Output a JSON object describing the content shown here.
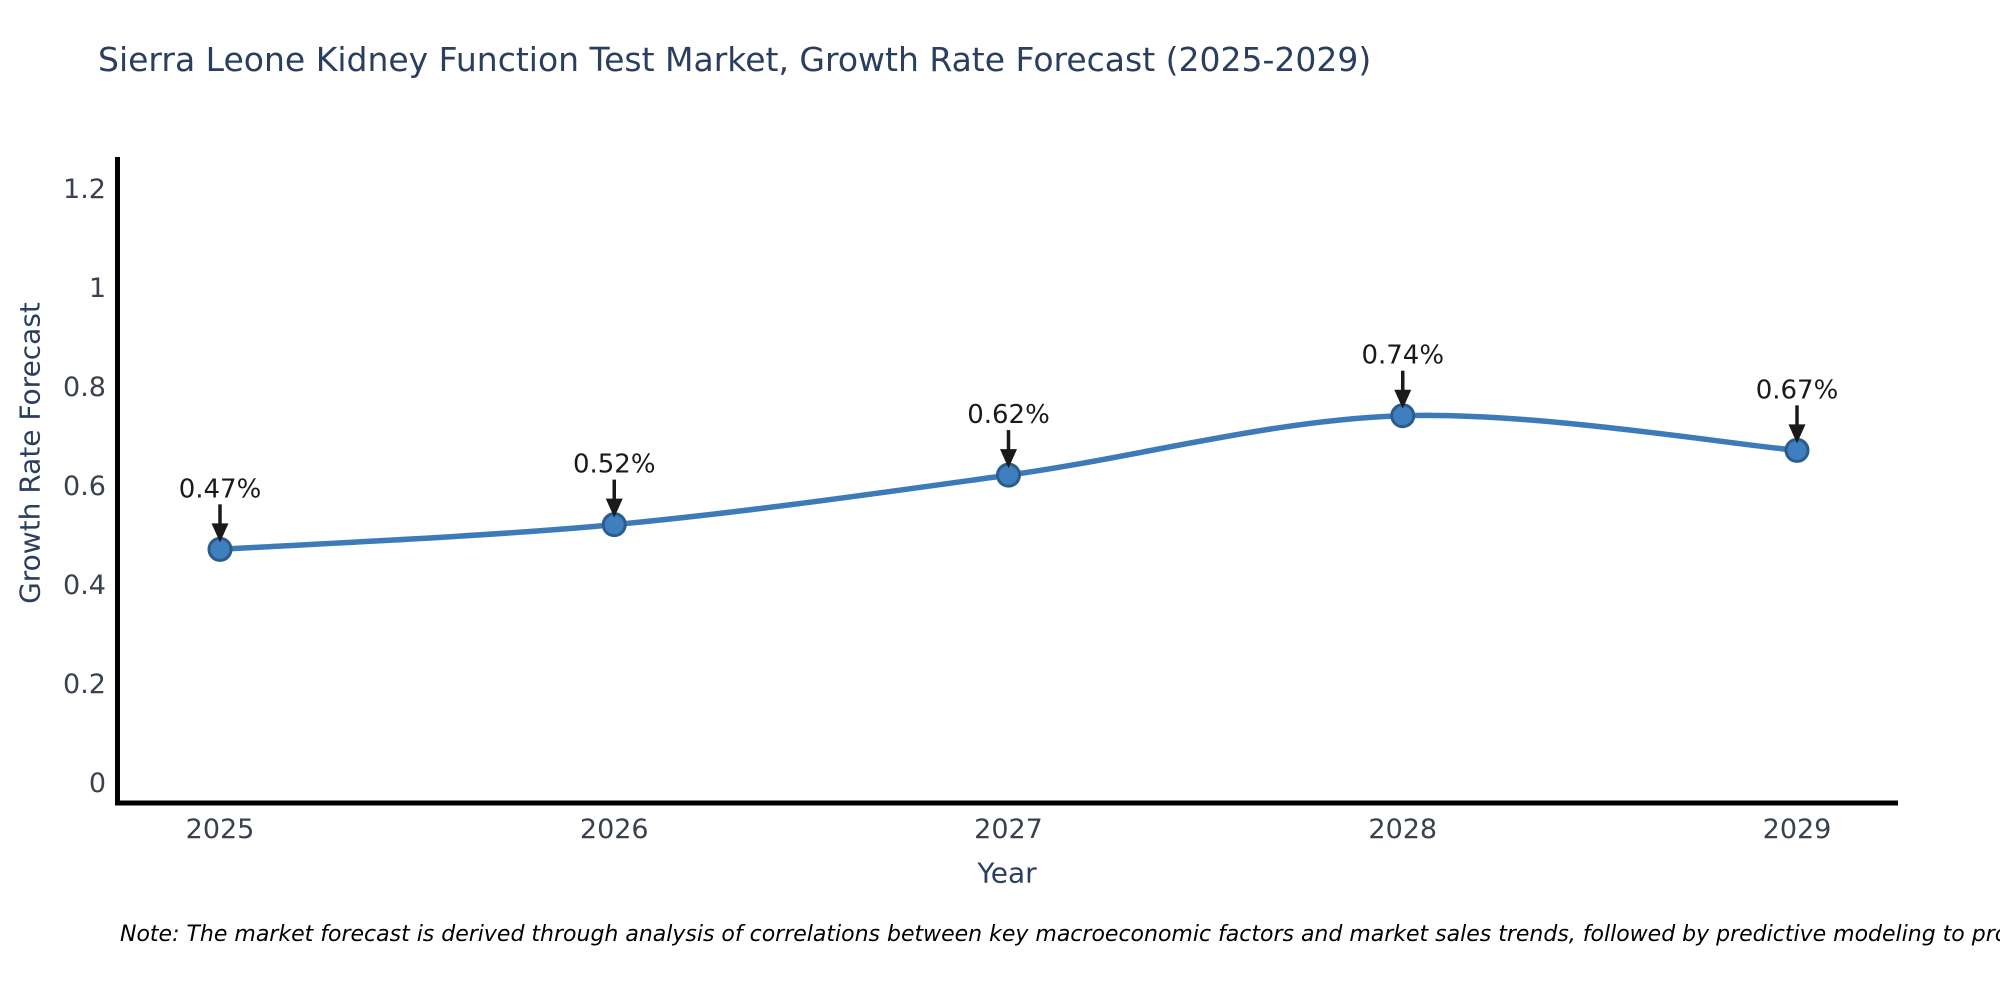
{
  "chart_data": {
    "type": "line",
    "title": "Sierra Leone Kidney Function Test Market, Growth Rate Forecast (2025-2029)",
    "xlabel": "Year",
    "ylabel": "Growth Rate Forecast",
    "x": [
      2025,
      2026,
      2027,
      2028,
      2029
    ],
    "xtick_labels": [
      "2025",
      "2026",
      "2027",
      "2028",
      "2029"
    ],
    "series": [
      {
        "name": "Growth Rate Forecast",
        "values": [
          0.47,
          0.52,
          0.62,
          0.74,
          0.67
        ]
      }
    ],
    "point_labels": [
      "0.47%",
      "0.52%",
      "0.62%",
      "0.74%",
      "0.67%"
    ],
    "yticks": [
      0,
      0.2,
      0.4,
      0.6,
      0.8,
      1,
      1.2
    ],
    "ytick_labels": [
      "0",
      "0.2",
      "0.4",
      "0.6",
      "0.8",
      "1",
      "1.2"
    ],
    "ylim": [
      0,
      1.26
    ],
    "grid": false,
    "legend": "none",
    "annotation_style": "down-arrow",
    "note": "Note: The market forecast is derived through analysis of correlations between key macroeconomic factors and market sales trends, followed by predictive modeling to project future sales",
    "colors": {
      "line": "#3d7ab8",
      "marker_fill": "#3f7fbf",
      "marker_edge": "#2b5c8a",
      "axis": "#000000",
      "tick_label": "#39414d",
      "title": "#2a3f5f",
      "axis_title": "#2a3f5f",
      "annotation": "#1a1a1a",
      "note_text": "#000000",
      "background": "#ffffff"
    }
  }
}
